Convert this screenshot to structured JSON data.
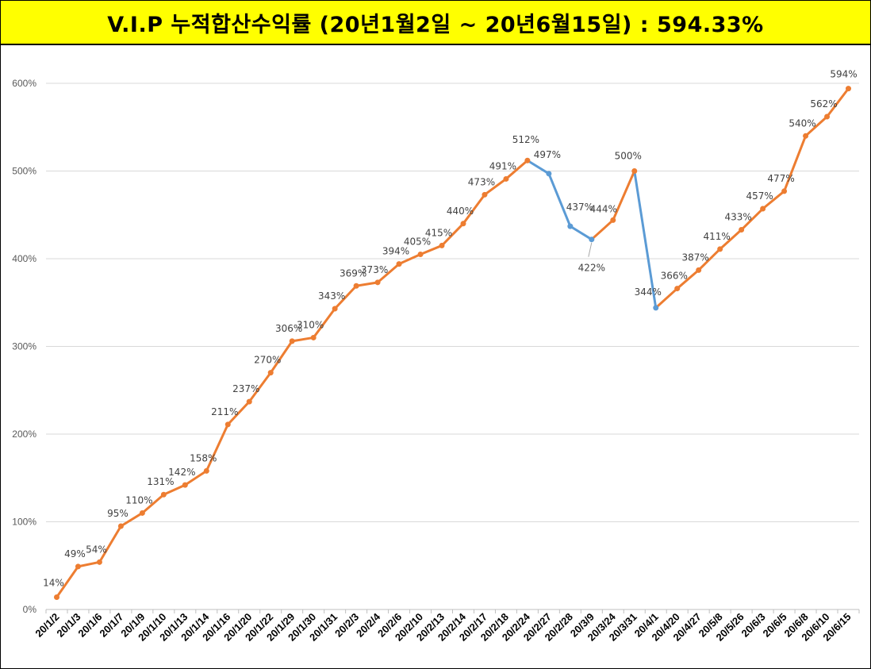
{
  "header": {
    "title": "V.I.P 누적합산수익률 (20년1월2일 ~ 20년6월15일) : 594.33%"
  },
  "colors": {
    "title_background": "#ffff00",
    "up_line": "#ed7d31",
    "down_line": "#5b9bd5",
    "gridline": "#d9d9d9"
  },
  "chart_data": {
    "type": "line",
    "title": "V.I.P 누적합산수익률 (20년1월2일 ~ 20년6월15일) : 594.33%",
    "xlabel": "",
    "ylabel": "",
    "ylim": [
      0,
      600
    ],
    "yticks": [
      0,
      100,
      200,
      300,
      400,
      500,
      600
    ],
    "ytick_labels": [
      "0%",
      "100%",
      "200%",
      "300%",
      "400%",
      "500%",
      "600%"
    ],
    "grid": true,
    "legend": "none",
    "categories": [
      "20/1/2",
      "20/1/3",
      "20/1/6",
      "20/1/7",
      "20/1/9",
      "20/1/10",
      "20/1/13",
      "20/1/14",
      "20/1/16",
      "20/1/20",
      "20/1/22",
      "20/1/29",
      "20/1/30",
      "20/1/31",
      "20/2/3",
      "20/2/4",
      "20/2/6",
      "20/2/10",
      "20/2/13",
      "20/2/14",
      "20/2/17",
      "20/2/18",
      "20/2/24",
      "20/2/27",
      "20/2/28",
      "20/3/9",
      "20/3/24",
      "20/3/31",
      "20/4/1",
      "20/4/20",
      "20/4/27",
      "20/5/8",
      "20/5/26",
      "20/6/3",
      "20/6/5",
      "20/6/8",
      "20/6/10",
      "20/6/15"
    ],
    "values": [
      14,
      49,
      54,
      95,
      110,
      131,
      142,
      158,
      211,
      237,
      270,
      306,
      310,
      343,
      369,
      373,
      394,
      405,
      415,
      440,
      473,
      491,
      512,
      497,
      437,
      422,
      444,
      500,
      344,
      366,
      387,
      411,
      433,
      457,
      477,
      540,
      562,
      594
    ],
    "data_labels": [
      "14%",
      "49%",
      "54%",
      "95%",
      "110%",
      "131%",
      "142%",
      "158%",
      "211%",
      "237%",
      "270%",
      "306%",
      "310%",
      "343%",
      "369%",
      "373%",
      "394%",
      "405%",
      "415%",
      "440%",
      "473%",
      "491%",
      "512%",
      "497%",
      "437%",
      "422%",
      "444%",
      "500%",
      "344%",
      "366%",
      "387%",
      "411%",
      "433%",
      "457%",
      "477%",
      "540%",
      "562%",
      "594%"
    ]
  }
}
